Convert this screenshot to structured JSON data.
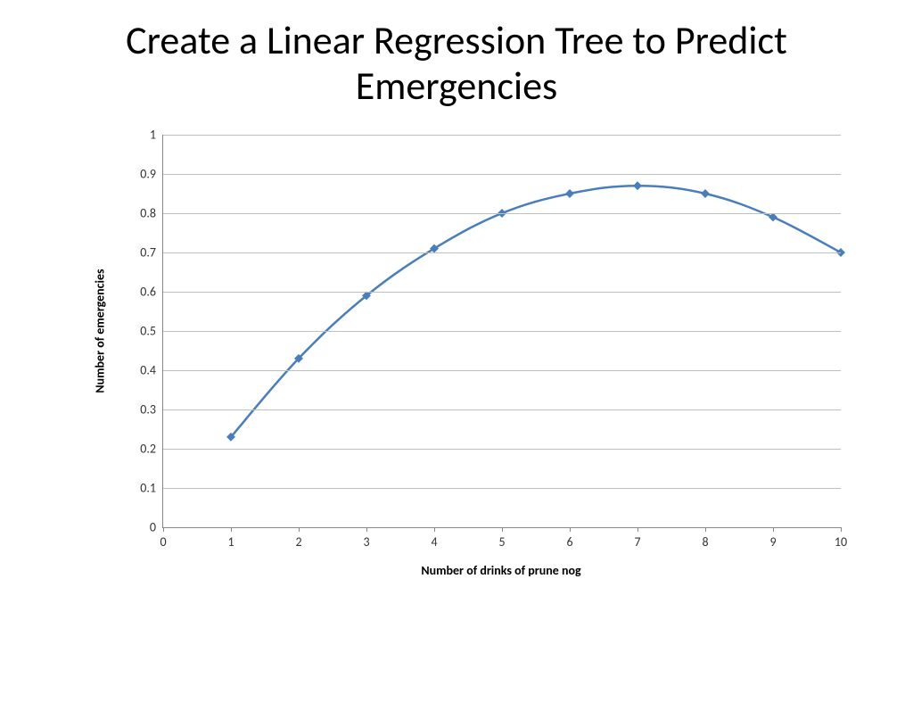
{
  "title": "Create a Linear Regression Tree to Predict Emergencies",
  "chart": {
    "type": "line",
    "x_axis_title": "Number of drinks of prune nog",
    "y_axis_title": "Number of emergencies",
    "xlim": [
      0,
      10
    ],
    "ylim": [
      0,
      1
    ],
    "xticks": [
      0,
      1,
      2,
      3,
      4,
      5,
      6,
      7,
      8,
      9,
      10
    ],
    "yticks": [
      0,
      0.1,
      0.2,
      0.3,
      0.4,
      0.5,
      0.6,
      0.7,
      0.8,
      0.9,
      1
    ],
    "series": {
      "x": [
        1,
        2,
        3,
        4,
        5,
        6,
        7,
        8,
        9,
        10
      ],
      "y": [
        0.23,
        0.43,
        0.59,
        0.71,
        0.8,
        0.85,
        0.87,
        0.85,
        0.79,
        0.7
      ]
    },
    "line_color": "#4a7ebb",
    "line_width": 2.5,
    "marker_color": "#4a7ebb",
    "marker_size": 7,
    "grid_color": "#bfbfbf",
    "axis_color": "#888888",
    "background_color": "#ffffff",
    "tick_font_size": 14,
    "axis_title_font_size": 14,
    "title_font_size": 44
  }
}
